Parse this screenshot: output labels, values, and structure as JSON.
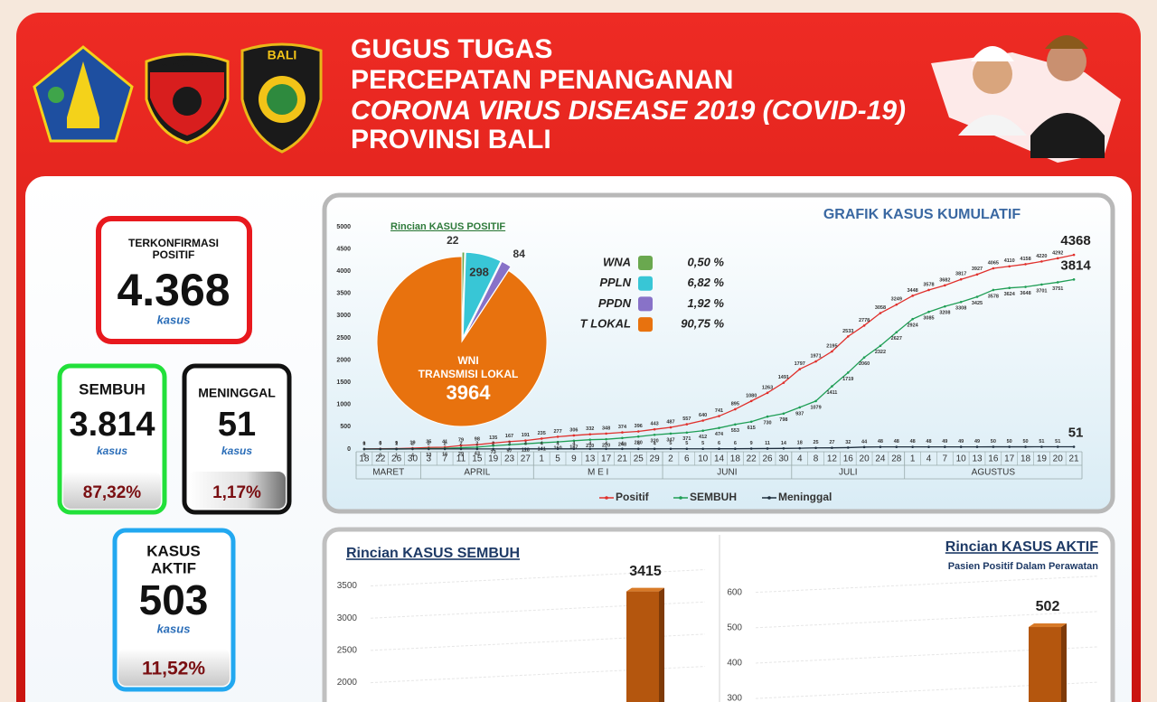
{
  "header": {
    "title_lines": [
      "GUGUS TUGAS",
      "PERCEPATAN PENANGANAN",
      "CORONA VIRUS DISEASE 2019 (COVID-19)",
      "PROVINSI BALI"
    ],
    "logos": [
      "UDAYANA",
      "BALI"
    ]
  },
  "stats": {
    "confirmed": {
      "label_lines": [
        "TERKONFIRMASI",
        "POSITIF"
      ],
      "value": "4.368",
      "unit": "kasus"
    },
    "recovered": {
      "label": "SEMBUH",
      "value": "3.814",
      "unit": "kasus",
      "percent": "87,32%"
    },
    "deaths": {
      "label": "MENINGGAL",
      "value": "51",
      "unit": "kasus",
      "percent": "1,17%"
    },
    "active": {
      "label_lines": [
        "KASUS",
        "AKTIF"
      ],
      "value": "503",
      "unit": "kasus",
      "percent": "11,52%"
    }
  },
  "chart_data": [
    {
      "type": "line",
      "title": "GRAFIK KASUS KUMULATIF",
      "category_groups": [
        {
          "label": "MARET",
          "categories": [
            "18",
            "22",
            "26",
            "30"
          ]
        },
        {
          "label": "APRIL",
          "categories": [
            "3",
            "7",
            "11",
            "15",
            "19",
            "23",
            "27"
          ]
        },
        {
          "label": "M E I",
          "categories": [
            "1",
            "5",
            "9",
            "13",
            "17",
            "21",
            "25",
            "29"
          ]
        },
        {
          "label": "JUNI",
          "categories": [
            "2",
            "6",
            "10",
            "14",
            "18",
            "22",
            "26",
            "30"
          ]
        },
        {
          "label": "JULI",
          "categories": [
            "4",
            "8",
            "12",
            "16",
            "20",
            "24",
            "28"
          ]
        },
        {
          "label": "AGUSTUS",
          "categories": [
            "1",
            "4",
            "7",
            "10",
            "13",
            "16",
            "17",
            "18",
            "19",
            "20",
            "21"
          ]
        }
      ],
      "series": [
        {
          "name": "Positif",
          "color": "#e0302c",
          "values": [
            1,
            6,
            9,
            19,
            35,
            41,
            79,
            98,
            135,
            167,
            191,
            235,
            277,
            306,
            332,
            348,
            374,
            396,
            443,
            487,
            557,
            640,
            741,
            895,
            1080,
            1263,
            1491,
            1797,
            1971,
            2195,
            2533,
            2778,
            3058,
            3249,
            3448,
            3578,
            3682,
            3817,
            3927,
            4065,
            4110,
            4158,
            4220,
            4292,
            4368
          ]
        },
        {
          "name": "SEMBUH",
          "color": "#1f9e55",
          "values": [
            0,
            0,
            1,
            4,
            13,
            16,
            29,
            43,
            73,
            97,
            118,
            141,
            160,
            187,
            210,
            220,
            248,
            280,
            320,
            347,
            371,
            412,
            474,
            553,
            615,
            730,
            798,
            937,
            1079,
            1411,
            1719,
            2060,
            2322,
            2627,
            2924,
            3085,
            3208,
            3308,
            3425,
            3578,
            3624,
            3648,
            3701,
            3751,
            3814
          ]
        },
        {
          "name": "Meninggal",
          "color": "#1e2e3e",
          "values": [
            0,
            0,
            1,
            2,
            2,
            2,
            2,
            2,
            2,
            3,
            4,
            4,
            4,
            4,
            4,
            4,
            4,
            4,
            4,
            5,
            5,
            5,
            6,
            6,
            9,
            11,
            14,
            18,
            25,
            27,
            32,
            44,
            48,
            48,
            48,
            48,
            49,
            49,
            49,
            50,
            50,
            50,
            51,
            51,
            51
          ]
        }
      ],
      "ylim": [
        0,
        5000
      ],
      "yticks": [
        0,
        500,
        1000,
        1500,
        2000,
        2500,
        3000,
        3500,
        4000,
        4500,
        5000
      ],
      "grid": false
    },
    {
      "type": "pie",
      "title": "Rincian KASUS POSITIF",
      "categories": [
        "WNA",
        "PPLN",
        "PPDN",
        "T LOKAL"
      ],
      "values": [
        22,
        298,
        84,
        3964
      ],
      "colors": [
        "#6aa84f",
        "#38c6d6",
        "#8872c8",
        "#e8720e"
      ],
      "percent_labels": [
        "0,50 %",
        "6,82 %",
        "1,92 %",
        "90,75 %"
      ],
      "slice_annotation": [
        "WNI",
        "TRANSMISI LOKAL"
      ]
    },
    {
      "type": "bar",
      "title": "Rincian KASUS SEMBUH",
      "values": [
        3415
      ],
      "color": "#b4560e",
      "ylim": [
        1700,
        3900
      ],
      "yticks": [
        2000,
        2500,
        3000,
        3500
      ],
      "grid": true
    },
    {
      "type": "bar",
      "title": "Rincian KASUS AKTIF",
      "subtitle": "Pasien Positif Dalam Perawatan",
      "values": [
        502
      ],
      "color": "#b4560e",
      "ylim": [
        290,
        640
      ],
      "yticks": [
        300,
        400,
        500,
        600
      ],
      "grid": true
    }
  ]
}
